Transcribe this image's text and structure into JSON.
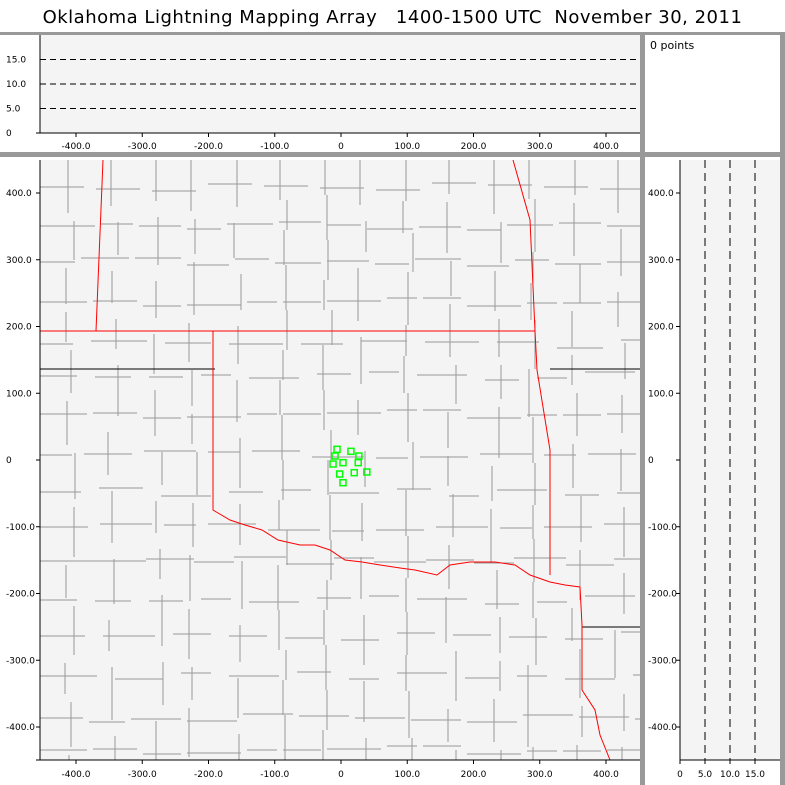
{
  "title": "Oklahoma Lightning Mapping Array   1400-1500 UTC  November 30, 2011",
  "info": {
    "point_count": "0 points"
  },
  "top_panel": {
    "y_ticks": [
      "0",
      "5.0",
      "10.0",
      "15.0"
    ],
    "x_ticks": [
      "-400.0",
      "-300.0",
      "-200.0",
      "-100.0",
      "0",
      "100.0",
      "200.0",
      "300.0",
      "400.0"
    ]
  },
  "map_panel": {
    "x_ticks": [
      "-400.0",
      "-300.0",
      "-200.0",
      "-100.0",
      "0",
      "100.0",
      "200.0",
      "300.0",
      "400.0"
    ],
    "y_ticks": [
      "400.0",
      "300.0",
      "200.0",
      "100.0",
      "0",
      "-100.0",
      "-200.0",
      "-300.0",
      "-400.0"
    ],
    "points": [
      [
        -6,
        16
      ],
      [
        -9,
        6
      ],
      [
        15,
        13
      ],
      [
        27,
        6
      ],
      [
        -12,
        -6
      ],
      [
        3,
        -4
      ],
      [
        26,
        -4
      ],
      [
        -2,
        -21
      ],
      [
        20,
        -19
      ],
      [
        39,
        -18
      ],
      [
        3,
        -34
      ]
    ],
    "point_color": "#00ff00",
    "state_border_color": "#ff0000",
    "county_color": "#999999"
  },
  "side_panel": {
    "y_ticks": [
      "400.0",
      "300.0",
      "200.0",
      "100.0",
      "0",
      "-100.0",
      "-200.0",
      "-300.0",
      "-400.0"
    ],
    "x_ticks": [
      "0",
      "5.0",
      "10.0",
      "15.0"
    ]
  }
}
